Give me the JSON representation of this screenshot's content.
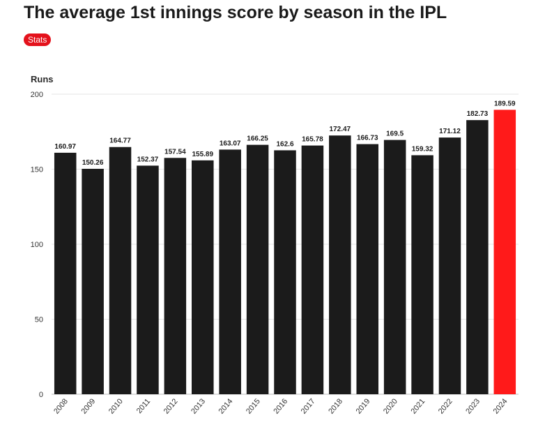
{
  "header": {
    "title": "The average 1st innings score by season in the IPL",
    "badge": "Stats"
  },
  "colors": {
    "bar": "#1b1b1b",
    "highlight": "#ff1a1a",
    "badge": "#e4121c",
    "grid": "#e6e6e6"
  },
  "chart_data": {
    "type": "bar",
    "title": "The average 1st innings score by season in the IPL",
    "xlabel": "",
    "ylabel": "Runs",
    "ylim": [
      0,
      200
    ],
    "yticks": [
      0,
      50,
      100,
      150,
      200
    ],
    "categories": [
      "2008",
      "2009",
      "2010",
      "2011",
      "2012",
      "2013",
      "2014",
      "2015",
      "2016",
      "2017",
      "2018",
      "2019",
      "2020",
      "2021",
      "2022",
      "2023",
      "2024"
    ],
    "values": [
      160.97,
      150.26,
      164.77,
      152.37,
      157.54,
      155.89,
      163.07,
      166.25,
      162.6,
      165.78,
      172.47,
      166.73,
      169.5,
      159.32,
      171.12,
      182.73,
      189.59
    ],
    "value_labels": [
      "160.97",
      "150.26",
      "164.77",
      "152.37",
      "157.54",
      "155.89",
      "163.07",
      "166.25",
      "162.6",
      "165.78",
      "172.47",
      "166.73",
      "169.5",
      "159.32",
      "171.12",
      "182.73",
      "189.59"
    ],
    "highlight_category": "2024",
    "grid": true,
    "legend": "none"
  }
}
